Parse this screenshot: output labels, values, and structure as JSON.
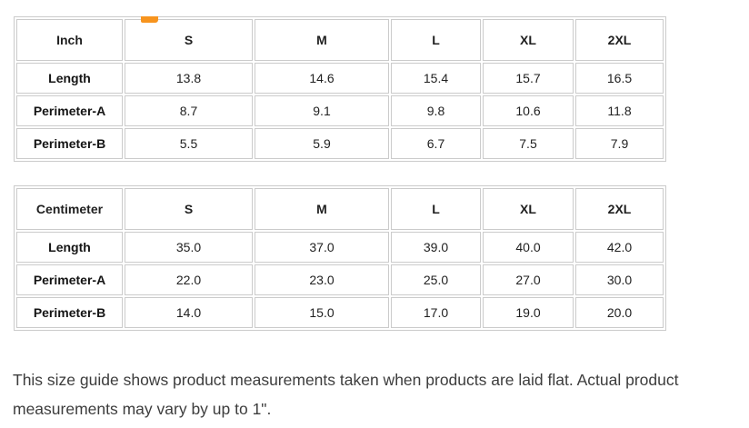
{
  "heading_fragment": {
    "color": "#f7941e"
  },
  "tables": [
    {
      "unit": "Inch",
      "sizes": [
        "S",
        "M",
        "L",
        "XL",
        "2XL"
      ],
      "rows": [
        {
          "label": "Length",
          "values": [
            "13.8",
            "14.6",
            "15.4",
            "15.7",
            "16.5"
          ]
        },
        {
          "label": "Perimeter-A",
          "values": [
            "8.7",
            "9.1",
            "9.8",
            "10.6",
            "11.8"
          ]
        },
        {
          "label": "Perimeter-B",
          "values": [
            "5.5",
            "5.9",
            "6.7",
            "7.5",
            "7.9"
          ]
        }
      ]
    },
    {
      "unit": "Centimeter",
      "sizes": [
        "S",
        "M",
        "L",
        "XL",
        "2XL"
      ],
      "rows": [
        {
          "label": "Length",
          "values": [
            "35.0",
            "37.0",
            "39.0",
            "40.0",
            "42.0"
          ]
        },
        {
          "label": "Perimeter-A",
          "values": [
            "22.0",
            "23.0",
            "25.0",
            "27.0",
            "30.0"
          ]
        },
        {
          "label": "Perimeter-B",
          "values": [
            "14.0",
            "15.0",
            "17.0",
            "19.0",
            "20.0"
          ]
        }
      ]
    }
  ],
  "note": {
    "lines": [
      "This size guide shows product measurements taken when products are laid flat. Actual product",
      "measurements may vary by up to 1\"."
    ]
  }
}
